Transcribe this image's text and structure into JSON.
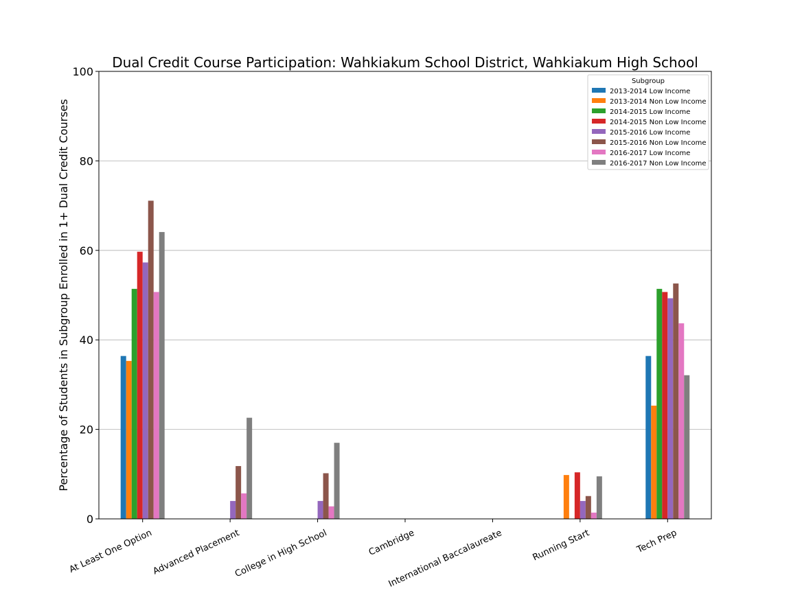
{
  "chart_data": {
    "type": "bar",
    "title": "Dual Credit Course Participation: Wahkiakum School District, Wahkiakum High School",
    "xlabel": "",
    "ylabel": "Percentage of Students in Subgroup Enrolled in 1+ Dual Credit Courses",
    "ylim": [
      0,
      100
    ],
    "yticks": [
      0,
      20,
      40,
      60,
      80,
      100
    ],
    "grid": "y",
    "legend": {
      "title": "Subgroup",
      "placement": "top-right"
    },
    "categories": [
      "At Least One Option",
      "Advanced Placement",
      "College in High School",
      "Cambridge",
      "International Baccalaureate",
      "Running Start",
      "Tech Prep"
    ],
    "series": [
      {
        "name": "2013-2014 Low Income",
        "color": "#1f77b4",
        "values": [
          36.4,
          0,
          0,
          0,
          0,
          0,
          36.4
        ]
      },
      {
        "name": "2013-2014 Non Low Income",
        "color": "#ff7f0e",
        "values": [
          35.3,
          0,
          0,
          0,
          0,
          9.8,
          25.3
        ]
      },
      {
        "name": "2014-2015 Low Income",
        "color": "#2ca02c",
        "values": [
          51.4,
          0,
          0,
          0,
          0,
          0,
          51.4
        ]
      },
      {
        "name": "2014-2015 Non Low Income",
        "color": "#d62728",
        "values": [
          59.7,
          0,
          0,
          0,
          0,
          10.4,
          50.7
        ]
      },
      {
        "name": "2015-2016 Low Income",
        "color": "#9467bd",
        "values": [
          57.3,
          4.0,
          4.0,
          0,
          0,
          4.0,
          49.3
        ]
      },
      {
        "name": "2015-2016 Non Low Income",
        "color": "#8c564b",
        "values": [
          71.1,
          11.8,
          10.2,
          0,
          0,
          5.1,
          52.6
        ]
      },
      {
        "name": "2016-2017 Low Income",
        "color": "#e377c2",
        "values": [
          50.7,
          5.7,
          2.8,
          0,
          0,
          1.4,
          43.7
        ]
      },
      {
        "name": "2016-2017 Non Low Income",
        "color": "#7f7f7f",
        "values": [
          64.1,
          22.6,
          17.0,
          0,
          0,
          9.5,
          32.1
        ]
      }
    ]
  }
}
